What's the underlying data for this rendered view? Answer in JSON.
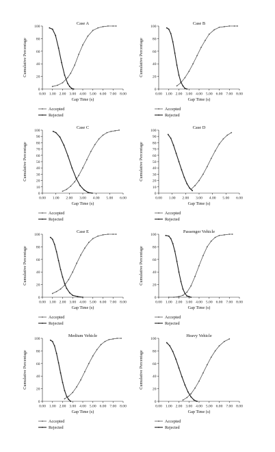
{
  "chart_data": [
    {
      "type": "line",
      "title": "Case A",
      "xlabel": "Gap Time (s)",
      "ylabel": "Cumulative Percentage",
      "xticks": [
        "0.00",
        "1.00",
        "2.00",
        "3.00",
        "4.00",
        "5.00",
        "6.00",
        "7.00",
        "8.00"
      ],
      "yticks": [
        "0",
        "20",
        "40",
        "60",
        "80",
        "100"
      ],
      "xlim": [
        0,
        8
      ],
      "ylim": [
        0,
        100
      ],
      "series": [
        {
          "name": "Accepted",
          "x": [
            1.0,
            1.5,
            2.0,
            2.5,
            2.8,
            3.2,
            3.6,
            4.0,
            4.5,
            5.0,
            5.5,
            6.0,
            6.5,
            7.0,
            7.3
          ],
          "y": [
            4,
            6,
            10,
            18,
            25,
            38,
            55,
            70,
            84,
            93,
            97,
            99,
            100,
            100,
            100
          ]
        },
        {
          "name": "Rejected",
          "x": [
            0.7,
            1.0,
            1.3,
            1.6,
            1.9,
            2.2,
            2.5,
            2.7,
            2.9,
            3.1
          ],
          "y": [
            97,
            95,
            85,
            65,
            42,
            22,
            9,
            4,
            1,
            0
          ]
        }
      ]
    },
    {
      "type": "line",
      "title": "Case B",
      "xlabel": "Gap Time (s)",
      "ylabel": "Cumulative Percentage",
      "xticks": [
        "0.00",
        "1.00",
        "2.00",
        "3.00",
        "4.00",
        "5.00",
        "6.00",
        "7.00",
        "8.00"
      ],
      "yticks": [
        "0",
        "20",
        "40",
        "60",
        "80",
        "100"
      ],
      "xlim": [
        0,
        8
      ],
      "ylim": [
        0,
        100
      ],
      "series": [
        {
          "name": "Accepted",
          "x": [
            1.8,
            2.2,
            2.6,
            3.0,
            3.4,
            3.8,
            4.2,
            4.6,
            5.0,
            5.5,
            6.0,
            6.5,
            7.0,
            7.5,
            7.8
          ],
          "y": [
            5,
            10,
            18,
            28,
            40,
            53,
            66,
            77,
            87,
            94,
            98,
            99,
            100,
            100,
            100
          ]
        },
        {
          "name": "Rejected",
          "x": [
            0.8,
            1.0,
            1.2,
            1.4,
            1.6,
            1.8,
            2.0,
            2.2,
            2.4,
            2.6,
            2.8
          ],
          "y": [
            97,
            95,
            88,
            75,
            57,
            38,
            22,
            11,
            5,
            1,
            0
          ]
        }
      ]
    },
    {
      "type": "line",
      "title": "Case C",
      "xlabel": "Gap Time (s)",
      "ylabel": "Cumulative Percentage",
      "xticks": [
        "0.00",
        "1.00",
        "2.00",
        "3.00",
        "4.00",
        "5.00",
        "6.00"
      ],
      "yticks": [
        "0",
        "10",
        "20",
        "30",
        "40",
        "50",
        "60",
        "70",
        "80",
        "90",
        "100"
      ],
      "xlim": [
        0,
        6
      ],
      "ylim": [
        0,
        100
      ],
      "series": [
        {
          "name": "Accepted",
          "x": [
            1.5,
            1.8,
            2.1,
            2.4,
            2.7,
            3.0,
            3.3,
            3.6,
            3.9,
            4.2,
            4.5,
            4.8,
            5.1,
            5.4,
            5.7
          ],
          "y": [
            3,
            6,
            11,
            18,
            28,
            40,
            53,
            66,
            77,
            86,
            92,
            96,
            98,
            99,
            100
          ]
        },
        {
          "name": "Rejected",
          "x": [
            0.8,
            1.0,
            1.3,
            1.6,
            1.9,
            2.2,
            2.5,
            2.8,
            3.1,
            3.4,
            3.7
          ],
          "y": [
            98,
            96,
            89,
            76,
            59,
            40,
            24,
            12,
            5,
            1,
            0
          ]
        }
      ]
    },
    {
      "type": "line",
      "title": "Case D",
      "xlabel": "Gap Time (s)",
      "ylabel": "Cumulative Percentage",
      "xticks": [
        "0.00",
        "1.00",
        "2.00",
        "3.00",
        "4.00",
        "5.00",
        "6.00"
      ],
      "yticks": [
        "0",
        "10",
        "20",
        "30",
        "40",
        "50",
        "60",
        "70",
        "80",
        "90",
        "100"
      ],
      "xlim": [
        0,
        6
      ],
      "ylim": [
        0,
        100
      ],
      "series": [
        {
          "name": "Accepted",
          "x": [
            2.4,
            2.7,
            3.0,
            3.3,
            3.6,
            3.9,
            4.2,
            4.5,
            4.8,
            5.1,
            5.4
          ],
          "y": [
            6,
            12,
            20,
            30,
            42,
            55,
            67,
            78,
            86,
            92,
            96
          ]
        },
        {
          "name": "Rejected",
          "x": [
            0.7,
            0.9,
            1.1,
            1.3,
            1.5,
            1.7,
            1.9,
            2.1,
            2.3,
            2.5
          ],
          "y": [
            93,
            87,
            76,
            63,
            50,
            37,
            25,
            15,
            8,
            4
          ]
        }
      ]
    },
    {
      "type": "line",
      "title": "Case E",
      "xlabel": "Gap Time (s)",
      "ylabel": "Cumulative Percentage",
      "xticks": [
        "0.00",
        "1.00",
        "2.00",
        "3.00",
        "4.00",
        "5.00",
        "6.00",
        "7.00",
        "8.00"
      ],
      "yticks": [
        "0",
        "20",
        "40",
        "60",
        "80",
        "100"
      ],
      "xlim": [
        0,
        8
      ],
      "ylim": [
        0,
        100
      ],
      "series": [
        {
          "name": "Accepted",
          "x": [
            1.0,
            1.4,
            1.8,
            2.2,
            2.6,
            3.0,
            3.4,
            3.8,
            4.2,
            4.6,
            5.0,
            5.5,
            6.0,
            6.5,
            7.0,
            7.3
          ],
          "y": [
            6,
            9,
            13,
            19,
            28,
            40,
            54,
            67,
            78,
            87,
            93,
            97,
            99,
            100,
            100,
            100
          ]
        },
        {
          "name": "Rejected",
          "x": [
            0.8,
            1.0,
            1.2,
            1.4,
            1.6,
            1.8,
            2.0,
            2.2,
            2.4,
            2.7,
            3.0,
            3.5,
            4.0
          ],
          "y": [
            95,
            92,
            84,
            72,
            58,
            44,
            32,
            22,
            14,
            7,
            3,
            1,
            0
          ]
        }
      ]
    },
    {
      "type": "line",
      "title": "Passenger Vehicle",
      "xlabel": "Gap Time (s)",
      "ylabel": "Cumulative Percentage",
      "xticks": [
        "0.00",
        "1.00",
        "2.00",
        "3.00",
        "4.00",
        "5.00",
        "6.00",
        "7.00",
        "8.00"
      ],
      "yticks": [
        "0",
        "20",
        "40",
        "60",
        "80",
        "100"
      ],
      "xlim": [
        0,
        8
      ],
      "ylim": [
        0,
        100
      ],
      "series": [
        {
          "name": "Accepted",
          "x": [
            1.0,
            1.5,
            2.0,
            2.4,
            2.8,
            3.2,
            3.6,
            4.0,
            4.4,
            4.8,
            5.2,
            5.6,
            6.0,
            6.5,
            7.0,
            7.3
          ],
          "y": [
            0,
            0,
            1,
            3,
            8,
            18,
            33,
            50,
            66,
            80,
            89,
            95,
            98,
            99,
            100,
            100
          ]
        },
        {
          "name": "Rejected",
          "x": [
            0.7,
            1.0,
            1.2,
            1.4,
            1.6,
            1.8,
            2.0,
            2.2,
            2.4,
            2.6,
            2.8,
            3.0,
            3.2
          ],
          "y": [
            98,
            97,
            93,
            85,
            73,
            57,
            40,
            25,
            13,
            6,
            2,
            1,
            0
          ]
        }
      ]
    },
    {
      "type": "line",
      "title": "Medium Vehicle",
      "xlabel": "Gap Time (s)",
      "ylabel": "Cumulative Percentage",
      "xticks": [
        "0.00",
        "1.00",
        "2.00",
        "3.00",
        "4.00",
        "5.00",
        "6.00",
        "7.00",
        "8.00"
      ],
      "yticks": [
        "0",
        "20",
        "40",
        "60",
        "80",
        "100"
      ],
      "xlim": [
        0,
        8
      ],
      "ylim": [
        0,
        100
      ],
      "series": [
        {
          "name": "Accepted",
          "x": [
            2.2,
            2.6,
            3.0,
            3.4,
            3.8,
            4.2,
            4.6,
            5.0,
            5.4,
            5.8,
            6.2,
            6.6,
            7.0,
            7.4,
            7.8
          ],
          "y": [
            4,
            8,
            14,
            23,
            34,
            47,
            60,
            72,
            82,
            90,
            95,
            98,
            99,
            100,
            100
          ]
        },
        {
          "name": "Rejected",
          "x": [
            0.8,
            1.0,
            1.2,
            1.4,
            1.6,
            1.8,
            2.0,
            2.2,
            2.4,
            2.6,
            2.8
          ],
          "y": [
            97,
            95,
            88,
            76,
            61,
            45,
            30,
            17,
            8,
            3,
            0
          ]
        }
      ]
    },
    {
      "type": "line",
      "title": "Heavy Vehicle",
      "xlabel": "Gap Time (s)",
      "ylabel": "Cumulative Percentage",
      "xticks": [
        "0.00",
        "1.00",
        "2.00",
        "3.00",
        "4.00",
        "5.00",
        "6.00",
        "7.00",
        "8.00"
      ],
      "yticks": [
        "0",
        "20",
        "40",
        "60",
        "80",
        "100"
      ],
      "xlim": [
        0,
        8
      ],
      "ylim": [
        0,
        100
      ],
      "series": [
        {
          "name": "Accepted",
          "x": [
            2.4,
            2.8,
            3.2,
            3.6,
            4.0,
            4.4,
            4.8,
            5.2,
            5.6,
            6.0,
            6.5,
            7.0
          ],
          "y": [
            2,
            6,
            12,
            21,
            32,
            45,
            58,
            70,
            80,
            88,
            95,
            99
          ]
        },
        {
          "name": "Rejected",
          "x": [
            0.8,
            1.1,
            1.4,
            1.7,
            2.0,
            2.3,
            2.6,
            2.9,
            3.2,
            3.5,
            3.8
          ],
          "y": [
            93,
            88,
            79,
            67,
            53,
            39,
            26,
            15,
            7,
            2,
            0
          ]
        }
      ]
    }
  ]
}
